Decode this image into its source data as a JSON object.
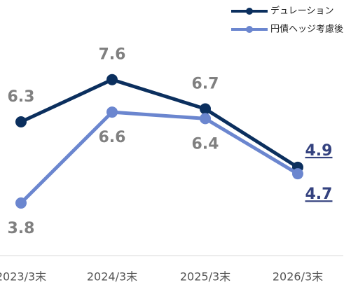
{
  "chart_data": {
    "type": "line",
    "categories": [
      "2023/3末",
      "2024/3末",
      "2025/3末",
      "2026/3末"
    ],
    "series": [
      {
        "name": "デュレーション",
        "color": "#0b2f5e",
        "values": [
          6.3,
          7.6,
          6.7,
          4.9
        ]
      },
      {
        "name": "円債ヘッジ考慮後",
        "color": "#6b86cf",
        "values": [
          3.8,
          6.6,
          6.4,
          4.7
        ]
      }
    ],
    "ylim": [
      3,
      8.5
    ]
  }
}
